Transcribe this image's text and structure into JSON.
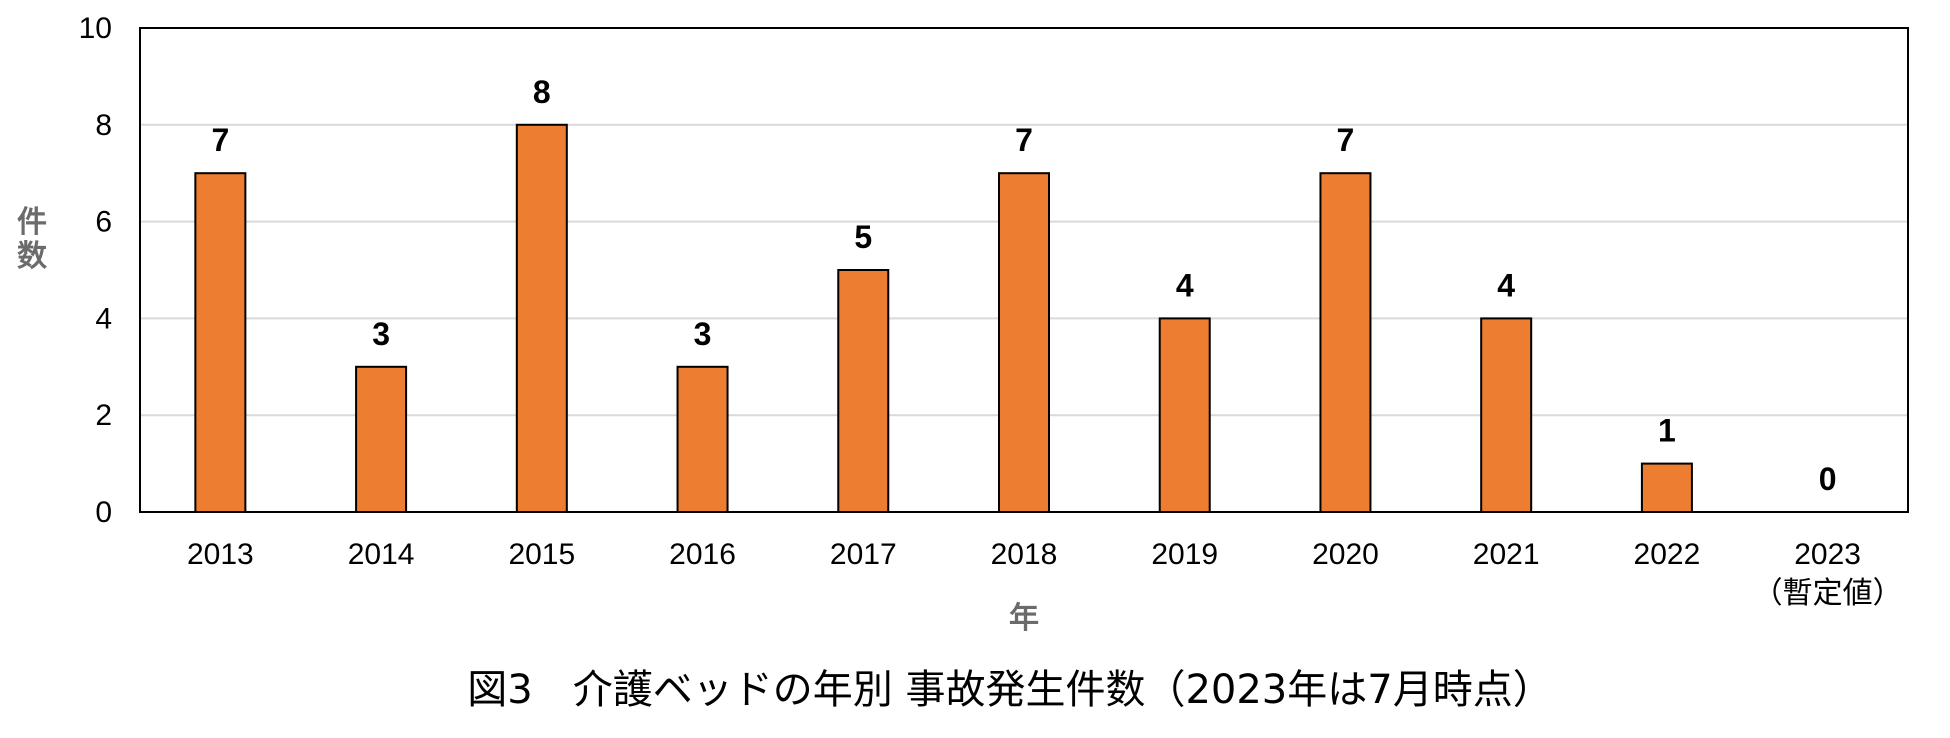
{
  "chart_data": {
    "type": "bar",
    "title": "図3　介護ベッドの年別 事故発生件数（2023年は7月時点）",
    "xlabel": "年",
    "ylabel": "件数",
    "categories": [
      "2013",
      "2014",
      "2015",
      "2016",
      "2017",
      "2018",
      "2019",
      "2020",
      "2021",
      "2022",
      "2023"
    ],
    "category_notes": {
      "2023": "（暫定値）"
    },
    "values": [
      7,
      3,
      8,
      3,
      5,
      7,
      4,
      7,
      4,
      1,
      0
    ],
    "ylim": [
      0,
      10
    ],
    "yticks": [
      0,
      2,
      4,
      6,
      8,
      10
    ],
    "grid": true,
    "legend": "none",
    "bar_color": "#ED7D31",
    "bar_edge_color": "#000000",
    "grid_color": "#D9D9D9"
  }
}
